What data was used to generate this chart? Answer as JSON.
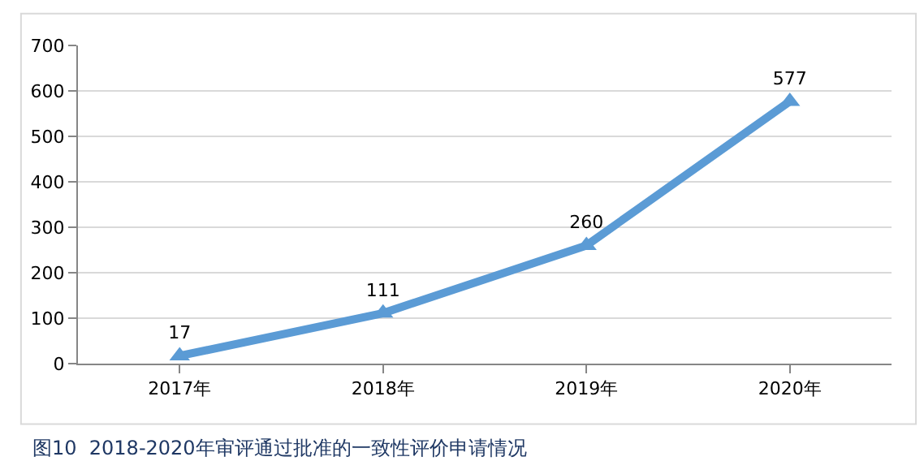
{
  "chart_data": {
    "type": "line",
    "categories": [
      "2017年",
      "2018年",
      "2019年",
      "2020年"
    ],
    "series": [
      {
        "color": "#5b9bd5",
        "values": [
          17,
          111,
          260,
          577
        ]
      }
    ],
    "ylim": [
      0,
      700
    ],
    "yticks": [
      0,
      100,
      200,
      300,
      400,
      500,
      600,
      700
    ],
    "grid": "y",
    "marker": "triangle",
    "line_style": "solid",
    "data_labels": true,
    "annotations": [
      "图10  2018-2020年审评通过批准的一致性评价申请情况"
    ]
  }
}
